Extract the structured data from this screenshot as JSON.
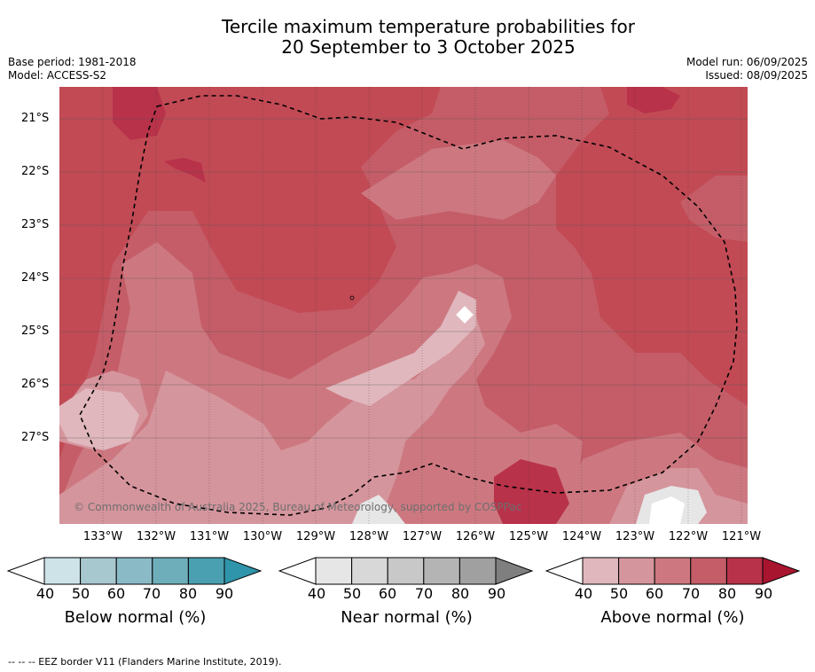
{
  "title": {
    "line1": "Tercile maximum temperature probabilities for",
    "line2": "20 September to 3 October 2025"
  },
  "meta": {
    "base_period": "Base period: 1981-2018",
    "model": "Model: ACCESS-S2",
    "model_run": "Model run: 06/09/2025",
    "issued": "Issued: 08/09/2025"
  },
  "map": {
    "copyright": "© Commonwealth of Australia 2025, Bureau of Meteorology, supported by COSPPac",
    "lat_labels": [
      "21°S",
      "22°S",
      "23°S",
      "24°S",
      "25°S",
      "26°S",
      "27°S"
    ],
    "lon_labels": [
      "133°W",
      "132°W",
      "131°W",
      "130°W",
      "129°W",
      "128°W",
      "127°W",
      "126°W",
      "125°W",
      "124°W",
      "123°W",
      "122°W",
      "121°W"
    ],
    "category_colors": {
      "below": [
        "#cde3e8",
        "#a8c8d0",
        "#8bbac7",
        "#6daeba",
        "#4a9fb0",
        "#2f95aa"
      ],
      "near": [
        "#e6e6e6",
        "#d8d8d8",
        "#c8c8c8",
        "#b4b4b4",
        "#a0a0a0",
        "#7f7f7f"
      ],
      "above": [
        "#e0b7bd",
        "#d5959d",
        "#cd7880",
        "#c45d68",
        "#b8324a",
        "#a8152f"
      ]
    }
  },
  "legends": [
    {
      "title": "Below normal (%)",
      "ticks": [
        "40",
        "50",
        "60",
        "70",
        "80",
        "90"
      ]
    },
    {
      "title": "Near normal (%)",
      "ticks": [
        "40",
        "50",
        "60",
        "70",
        "80",
        "90"
      ]
    },
    {
      "title": "Above normal (%)",
      "ticks": [
        "40",
        "50",
        "60",
        "70",
        "80",
        "90"
      ]
    }
  ],
  "footnote": "--  --  -- EEZ border V11 (Flanders Marine Institute, 2019)."
}
